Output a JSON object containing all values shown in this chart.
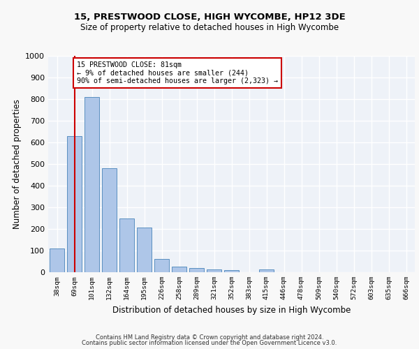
{
  "title_line1": "15, PRESTWOOD CLOSE, HIGH WYCOMBE, HP12 3DE",
  "title_line2": "Size of property relative to detached houses in High Wycombe",
  "xlabel": "Distribution of detached houses by size in High Wycombe",
  "ylabel": "Number of detached properties",
  "bar_labels": [
    "38sqm",
    "69sqm",
    "101sqm",
    "132sqm",
    "164sqm",
    "195sqm",
    "226sqm",
    "258sqm",
    "289sqm",
    "321sqm",
    "352sqm",
    "383sqm",
    "415sqm",
    "446sqm",
    "478sqm",
    "509sqm",
    "540sqm",
    "572sqm",
    "603sqm",
    "635sqm",
    "666sqm"
  ],
  "bar_values": [
    110,
    630,
    810,
    480,
    250,
    205,
    60,
    27,
    18,
    13,
    10,
    0,
    12,
    0,
    0,
    0,
    0,
    0,
    0,
    0,
    0
  ],
  "bar_color": "#aec6e8",
  "bar_edge_color": "#5a8fc0",
  "vline_x_index": 1,
  "annotation_text": "15 PRESTWOOD CLOSE: 81sqm\n← 9% of detached houses are smaller (244)\n90% of semi-detached houses are larger (2,323) →",
  "ylim": [
    0,
    1000
  ],
  "yticks": [
    0,
    100,
    200,
    300,
    400,
    500,
    600,
    700,
    800,
    900,
    1000
  ],
  "footer_line1": "Contains HM Land Registry data © Crown copyright and database right 2024.",
  "footer_line2": "Contains public sector information licensed under the Open Government Licence v3.0.",
  "background_color": "#eef2f8",
  "grid_color": "#ffffff",
  "annotation_box_color": "#ffffff",
  "annotation_box_edge": "#cc0000",
  "vline_color": "#cc0000",
  "fig_bg": "#f8f8f8"
}
